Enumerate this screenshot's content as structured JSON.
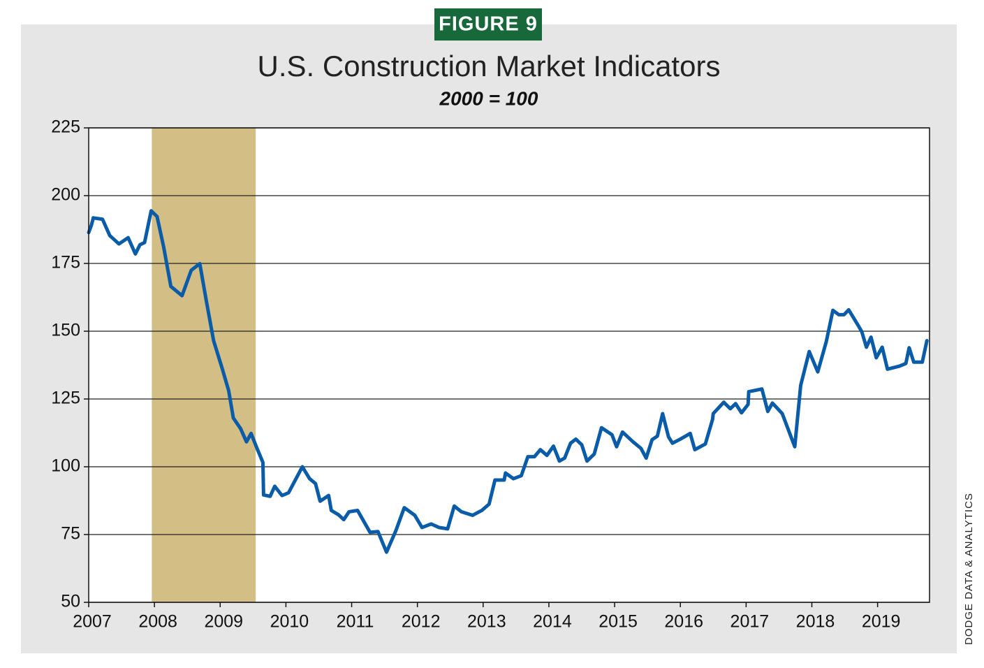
{
  "figure_label": "FIGURE 9",
  "source": "DODGE DATA & ANALYTICS",
  "chart_data": {
    "type": "line",
    "title": "U.S. Construction Market Indicators",
    "subtitle": "2000 = 100",
    "color": "#0b5ca8",
    "grid": true,
    "xlim": [
      2007,
      2019.79
    ],
    "xticks": [
      2007,
      2008,
      2009,
      2010,
      2011,
      2012,
      2013,
      2014,
      2015,
      2016,
      2017,
      2018,
      2019
    ],
    "ylim": [
      50,
      225
    ],
    "yticks": [
      50,
      75,
      100,
      125,
      150,
      175,
      200,
      225
    ],
    "shaded_regions": [
      {
        "start": 2007.96,
        "end": 2009.54,
        "color": "#d3be86"
      }
    ],
    "x": [
      2007.0,
      2007.04,
      2007.07,
      2007.21,
      2007.32,
      2007.46,
      2007.6,
      2007.71,
      2007.78,
      2007.85,
      2007.95,
      2008.04,
      2008.14,
      2008.25,
      2008.42,
      2008.56,
      2008.69,
      2008.79,
      2008.9,
      2009.03,
      2009.13,
      2009.2,
      2009.31,
      2009.4,
      2009.47,
      2009.55,
      2009.65,
      2009.66,
      2009.76,
      2009.83,
      2009.94,
      2010.04,
      2010.16,
      2010.25,
      2010.36,
      2010.45,
      2010.52,
      2010.65,
      2010.69,
      2010.8,
      2010.88,
      2010.96,
      2011.09,
      2011.28,
      2011.4,
      2011.53,
      2011.67,
      2011.8,
      2011.96,
      2012.07,
      2012.21,
      2012.33,
      2012.46,
      2012.56,
      2012.67,
      2012.84,
      2012.98,
      2013.09,
      2013.18,
      2013.32,
      2013.34,
      2013.46,
      2013.58,
      2013.68,
      2013.78,
      2013.87,
      2013.97,
      2014.07,
      2014.16,
      2014.24,
      2014.33,
      2014.41,
      2014.5,
      2014.58,
      2014.69,
      2014.8,
      2014.96,
      2015.03,
      2015.12,
      2015.28,
      2015.4,
      2015.48,
      2015.57,
      2015.65,
      2015.73,
      2015.82,
      2015.88,
      2016.0,
      2016.15,
      2016.22,
      2016.38,
      2016.49,
      2016.5,
      2016.66,
      2016.76,
      2016.84,
      2016.93,
      2017.03,
      2017.04,
      2017.24,
      2017.33,
      2017.4,
      2017.55,
      2017.74,
      2017.83,
      2017.96,
      2018.09,
      2018.22,
      2018.32,
      2018.41,
      2018.49,
      2018.56,
      2018.71,
      2018.76,
      2018.83,
      2018.9,
      2018.98,
      2019.07,
      2019.15,
      2019.33,
      2019.43,
      2019.48,
      2019.55,
      2019.68,
      2019.75
    ],
    "values": [
      186.4,
      189,
      191.8,
      191.3,
      185.3,
      182.2,
      184.5,
      178.5,
      181.9,
      182.7,
      194.4,
      192.3,
      181.1,
      166.5,
      163.1,
      172.5,
      174.9,
      161.1,
      146.5,
      136.3,
      128,
      118,
      114.1,
      109.2,
      112.3,
      107.4,
      101.6,
      89.6,
      89.1,
      92.8,
      89.4,
      90.4,
      95.9,
      100,
      95.6,
      93.8,
      87.3,
      89.4,
      83.9,
      82.3,
      80.5,
      83.4,
      83.9,
      75.8,
      76.1,
      68.5,
      76.3,
      84.9,
      82.1,
      77.6,
      78.9,
      77.6,
      77.1,
      85.5,
      83.4,
      82.1,
      83.9,
      86.2,
      95.1,
      95.1,
      97.7,
      95.6,
      96.7,
      103.7,
      103.7,
      106.3,
      104.2,
      107.6,
      102.1,
      103.2,
      108.7,
      110.2,
      108.1,
      102.1,
      104.7,
      114.4,
      111.8,
      107.4,
      112.8,
      109.2,
      106.8,
      103.2,
      110,
      111.3,
      119.6,
      111,
      108.7,
      110.2,
      112.3,
      106.3,
      108.4,
      117.5,
      119.6,
      123.8,
      121.4,
      123.3,
      119.9,
      123,
      127.7,
      128.7,
      120.4,
      123.5,
      119.6,
      107.4,
      130,
      142.5,
      135,
      146.2,
      157.7,
      156.1,
      156.1,
      157.9,
      151.9,
      149.8,
      144.1,
      147.8,
      140.2,
      144.1,
      136,
      137.1,
      138.1,
      143.9,
      138.6,
      138.6,
      146.5
    ]
  }
}
